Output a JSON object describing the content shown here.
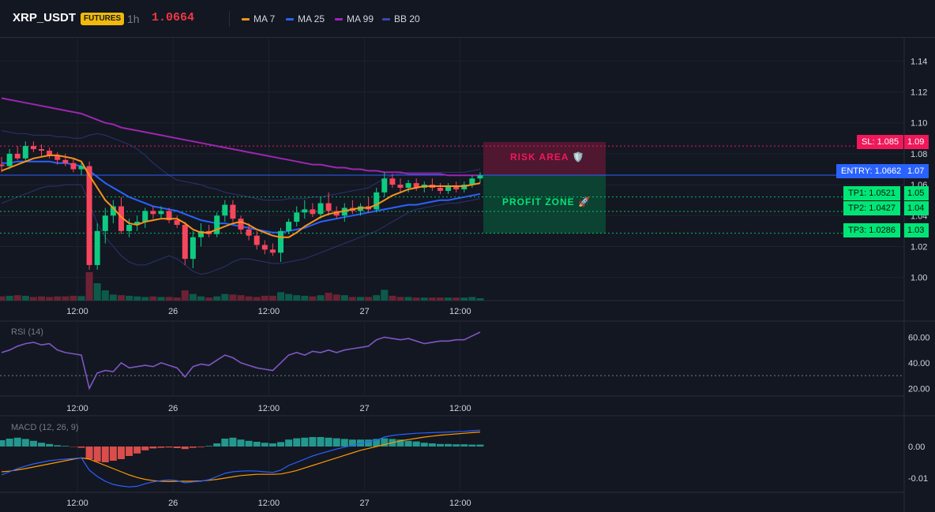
{
  "header": {
    "symbol": "XRP_USDT",
    "badge": "FUTURES",
    "timeframe": "1h",
    "price": "1.0664",
    "price_color": "#f23645"
  },
  "indicators": [
    {
      "name": "MA 7",
      "color": "#f7931a",
      "icon": "line-swatch"
    },
    {
      "name": "MA 25",
      "color": "#2962ff",
      "icon": "line-swatch"
    },
    {
      "name": "MA 99",
      "color": "#9c27b0",
      "icon": "line-swatch"
    },
    {
      "name": "BB 20",
      "color": "#3949ab",
      "icon": "line-swatch"
    }
  ],
  "annotations": {
    "risk_area": "RISK AREA 🛡️",
    "profit_zone": "PROFIT ZONE 🚀",
    "sl": "SL: 1.085",
    "entry": "ENTRY: 1.0662",
    "tp1": "TP1: 1.0521",
    "tp2": "TP2: 1.0427",
    "tp3": "TP3: 1.0286",
    "sl_axis": "1.09",
    "entry_axis": "1.07",
    "tp1_axis": "1.05",
    "tp2_axis": "1.04",
    "tp3_axis": "1.03"
  },
  "colors": {
    "background": "#131722",
    "up": "#0ecb81",
    "down": "#f6465d",
    "sl": "#f0185a",
    "entry": "#2962ff",
    "tp": "#00e676"
  },
  "rsi_pane": {
    "label": "RSI (14)"
  },
  "macd_pane": {
    "label": "MACD (12, 26, 9)"
  },
  "x_ticks": [
    "12:00",
    "26",
    "12:00",
    "27",
    "12:00"
  ],
  "chart_data": [
    {
      "type": "candlestick",
      "title": "XRP_USDT",
      "y_ticks": [
        "1.14",
        "1.12",
        "1.10",
        "1.08",
        "1.06",
        "1.04",
        "1.02",
        "1.00"
      ],
      "ylim": [
        0.985,
        1.155
      ],
      "candles": [
        {
          "o": 1.073,
          "h": 1.078,
          "l": 1.068,
          "c": 1.072
        },
        {
          "o": 1.072,
          "h": 1.083,
          "l": 1.07,
          "c": 1.08
        },
        {
          "o": 1.08,
          "h": 1.085,
          "l": 1.076,
          "c": 1.077
        },
        {
          "o": 1.077,
          "h": 1.088,
          "l": 1.075,
          "c": 1.085
        },
        {
          "o": 1.085,
          "h": 1.088,
          "l": 1.081,
          "c": 1.083
        },
        {
          "o": 1.083,
          "h": 1.086,
          "l": 1.078,
          "c": 1.082
        },
        {
          "o": 1.082,
          "h": 1.084,
          "l": 1.077,
          "c": 1.079
        },
        {
          "o": 1.079,
          "h": 1.081,
          "l": 1.073,
          "c": 1.076
        },
        {
          "o": 1.076,
          "h": 1.08,
          "l": 1.072,
          "c": 1.074
        },
        {
          "o": 1.074,
          "h": 1.077,
          "l": 1.068,
          "c": 1.07
        },
        {
          "o": 1.07,
          "h": 1.074,
          "l": 1.066,
          "c": 1.072
        },
        {
          "o": 1.072,
          "h": 1.075,
          "l": 1.005,
          "c": 1.008
        },
        {
          "o": 1.008,
          "h": 1.035,
          "l": 1.005,
          "c": 1.03
        },
        {
          "o": 1.03,
          "h": 1.045,
          "l": 1.022,
          "c": 1.04
        },
        {
          "o": 1.04,
          "h": 1.05,
          "l": 1.035,
          "c": 1.046
        },
        {
          "o": 1.046,
          "h": 1.052,
          "l": 1.028,
          "c": 1.03
        },
        {
          "o": 1.03,
          "h": 1.038,
          "l": 1.026,
          "c": 1.034
        },
        {
          "o": 1.034,
          "h": 1.04,
          "l": 1.03,
          "c": 1.036
        },
        {
          "o": 1.036,
          "h": 1.045,
          "l": 1.032,
          "c": 1.043
        },
        {
          "o": 1.043,
          "h": 1.046,
          "l": 1.038,
          "c": 1.041
        },
        {
          "o": 1.041,
          "h": 1.046,
          "l": 1.038,
          "c": 1.043
        },
        {
          "o": 1.043,
          "h": 1.045,
          "l": 1.035,
          "c": 1.037
        },
        {
          "o": 1.037,
          "h": 1.04,
          "l": 1.032,
          "c": 1.034
        },
        {
          "o": 1.034,
          "h": 1.036,
          "l": 1.008,
          "c": 1.012
        },
        {
          "o": 1.012,
          "h": 1.03,
          "l": 1.006,
          "c": 1.026
        },
        {
          "o": 1.026,
          "h": 1.035,
          "l": 1.02,
          "c": 1.03
        },
        {
          "o": 1.03,
          "h": 1.034,
          "l": 1.026,
          "c": 1.028
        },
        {
          "o": 1.028,
          "h": 1.042,
          "l": 1.026,
          "c": 1.04
        },
        {
          "o": 1.04,
          "h": 1.05,
          "l": 1.036,
          "c": 1.047
        },
        {
          "o": 1.047,
          "h": 1.05,
          "l": 1.036,
          "c": 1.038
        },
        {
          "o": 1.038,
          "h": 1.04,
          "l": 1.028,
          "c": 1.031
        },
        {
          "o": 1.031,
          "h": 1.035,
          "l": 1.024,
          "c": 1.027
        },
        {
          "o": 1.027,
          "h": 1.03,
          "l": 1.018,
          "c": 1.021
        },
        {
          "o": 1.021,
          "h": 1.024,
          "l": 1.015,
          "c": 1.018
        },
        {
          "o": 1.018,
          "h": 1.022,
          "l": 1.014,
          "c": 1.016
        },
        {
          "o": 1.016,
          "h": 1.032,
          "l": 1.01,
          "c": 1.03
        },
        {
          "o": 1.03,
          "h": 1.038,
          "l": 1.028,
          "c": 1.036
        },
        {
          "o": 1.036,
          "h": 1.046,
          "l": 1.033,
          "c": 1.042
        },
        {
          "o": 1.042,
          "h": 1.05,
          "l": 1.038,
          "c": 1.044
        },
        {
          "o": 1.044,
          "h": 1.048,
          "l": 1.039,
          "c": 1.041
        },
        {
          "o": 1.041,
          "h": 1.052,
          "l": 1.038,
          "c": 1.048
        },
        {
          "o": 1.048,
          "h": 1.055,
          "l": 1.04,
          "c": 1.043
        },
        {
          "o": 1.043,
          "h": 1.046,
          "l": 1.038,
          "c": 1.04
        },
        {
          "o": 1.04,
          "h": 1.048,
          "l": 1.036,
          "c": 1.045
        },
        {
          "o": 1.045,
          "h": 1.05,
          "l": 1.041,
          "c": 1.043
        },
        {
          "o": 1.043,
          "h": 1.048,
          "l": 1.04,
          "c": 1.046
        },
        {
          "o": 1.046,
          "h": 1.052,
          "l": 1.042,
          "c": 1.044
        },
        {
          "o": 1.044,
          "h": 1.058,
          "l": 1.042,
          "c": 1.055
        },
        {
          "o": 1.055,
          "h": 1.068,
          "l": 1.052,
          "c": 1.064
        },
        {
          "o": 1.064,
          "h": 1.067,
          "l": 1.058,
          "c": 1.06
        },
        {
          "o": 1.06,
          "h": 1.064,
          "l": 1.055,
          "c": 1.058
        },
        {
          "o": 1.058,
          "h": 1.063,
          "l": 1.055,
          "c": 1.061
        },
        {
          "o": 1.061,
          "h": 1.064,
          "l": 1.056,
          "c": 1.058
        },
        {
          "o": 1.058,
          "h": 1.062,
          "l": 1.055,
          "c": 1.06
        },
        {
          "o": 1.06,
          "h": 1.064,
          "l": 1.056,
          "c": 1.058
        },
        {
          "o": 1.058,
          "h": 1.061,
          "l": 1.054,
          "c": 1.056
        },
        {
          "o": 1.056,
          "h": 1.061,
          "l": 1.054,
          "c": 1.059
        },
        {
          "o": 1.059,
          "h": 1.062,
          "l": 1.055,
          "c": 1.057
        },
        {
          "o": 1.057,
          "h": 1.062,
          "l": 1.055,
          "c": 1.06
        },
        {
          "o": 1.06,
          "h": 1.066,
          "l": 1.058,
          "c": 1.064
        },
        {
          "o": 1.064,
          "h": 1.068,
          "l": 1.061,
          "c": 1.066
        }
      ],
      "ma7": [
        1.069,
        1.071,
        1.073,
        1.075,
        1.077,
        1.078,
        1.079,
        1.079,
        1.078,
        1.077,
        1.075,
        1.066,
        1.058,
        1.05,
        1.045,
        1.039,
        1.035,
        1.034,
        1.036,
        1.037,
        1.038,
        1.038,
        1.038,
        1.035,
        1.031,
        1.029,
        1.029,
        1.031,
        1.033,
        1.035,
        1.036,
        1.034,
        1.031,
        1.029,
        1.027,
        1.026,
        1.026,
        1.029,
        1.033,
        1.036,
        1.039,
        1.041,
        1.042,
        1.043,
        1.044,
        1.045,
        1.045,
        1.047,
        1.05,
        1.053,
        1.055,
        1.057,
        1.058,
        1.059,
        1.059,
        1.059,
        1.059,
        1.059,
        1.059,
        1.06,
        1.061
      ],
      "ma25": [
        1.074,
        1.074,
        1.075,
        1.075,
        1.075,
        1.075,
        1.075,
        1.074,
        1.074,
        1.073,
        1.072,
        1.069,
        1.065,
        1.061,
        1.058,
        1.055,
        1.052,
        1.05,
        1.048,
        1.046,
        1.045,
        1.044,
        1.043,
        1.041,
        1.039,
        1.037,
        1.036,
        1.035,
        1.035,
        1.034,
        1.033,
        1.032,
        1.031,
        1.03,
        1.029,
        1.029,
        1.03,
        1.031,
        1.032,
        1.034,
        1.036,
        1.037,
        1.038,
        1.039,
        1.04,
        1.041,
        1.042,
        1.043,
        1.044,
        1.045,
        1.046,
        1.047,
        1.047,
        1.048,
        1.049,
        1.05,
        1.05,
        1.051,
        1.052,
        1.053,
        1.054
      ],
      "ma99": [
        1.116,
        1.115,
        1.114,
        1.113,
        1.112,
        1.111,
        1.11,
        1.109,
        1.108,
        1.107,
        1.106,
        1.104,
        1.102,
        1.1,
        1.099,
        1.097,
        1.096,
        1.095,
        1.094,
        1.093,
        1.092,
        1.091,
        1.09,
        1.089,
        1.088,
        1.087,
        1.086,
        1.085,
        1.084,
        1.083,
        1.082,
        1.081,
        1.08,
        1.079,
        1.078,
        1.077,
        1.076,
        1.075,
        1.074,
        1.073,
        1.073,
        1.072,
        1.071,
        1.071,
        1.07,
        1.07,
        1.069,
        1.069,
        1.068,
        1.068,
        1.068,
        1.067,
        1.067,
        1.067,
        1.067,
        1.067,
        1.066,
        1.066,
        1.066,
        1.066,
        1.066
      ],
      "bb_upper": [
        1.095,
        1.094,
        1.093,
        1.093,
        1.092,
        1.092,
        1.092,
        1.091,
        1.091,
        1.09,
        1.09,
        1.092,
        1.093,
        1.092,
        1.09,
        1.088,
        1.086,
        1.083,
        1.079,
        1.074,
        1.07,
        1.066,
        1.063,
        1.062,
        1.061,
        1.06,
        1.058,
        1.057,
        1.055,
        1.054,
        1.053,
        1.052,
        1.051,
        1.05,
        1.05,
        1.05,
        1.051,
        1.051,
        1.051,
        1.052,
        1.052,
        1.053,
        1.054,
        1.055,
        1.056,
        1.057,
        1.058,
        1.061,
        1.064,
        1.066,
        1.067,
        1.068,
        1.068,
        1.068,
        1.068,
        1.068,
        1.068,
        1.068,
        1.068,
        1.069,
        1.07
      ],
      "bb_lower": [
        1.048,
        1.05,
        1.052,
        1.054,
        1.056,
        1.058,
        1.059,
        1.059,
        1.06,
        1.06,
        1.06,
        1.048,
        1.035,
        1.026,
        1.02,
        1.014,
        1.01,
        1.008,
        1.008,
        1.01,
        1.012,
        1.014,
        1.012,
        1.008,
        1.004,
        1.002,
        1.003,
        1.005,
        1.007,
        1.01,
        1.012,
        1.012,
        1.011,
        1.01,
        1.009,
        1.009,
        1.01,
        1.011,
        1.012,
        1.014,
        1.016,
        1.018,
        1.02,
        1.022,
        1.024,
        1.026,
        1.028,
        1.03,
        1.033,
        1.036,
        1.039,
        1.042,
        1.044,
        1.045,
        1.046,
        1.047,
        1.048,
        1.048,
        1.049,
        1.05,
        1.051
      ]
    },
    {
      "type": "line",
      "title": "RSI (14)",
      "y_ticks": [
        "60.00",
        "40.00",
        "20.00"
      ],
      "ylim": [
        14,
        72
      ],
      "level": 30,
      "values": [
        48,
        50,
        53,
        55,
        56,
        54,
        55,
        50,
        48,
        47,
        46,
        20,
        32,
        34,
        33,
        40,
        36,
        37,
        38,
        37,
        40,
        38,
        36,
        29,
        37,
        39,
        38,
        42,
        46,
        44,
        40,
        38,
        36,
        35,
        34,
        40,
        46,
        48,
        46,
        49,
        48,
        50,
        48,
        50,
        51,
        52,
        53,
        58,
        60,
        59,
        58,
        59,
        57,
        55,
        56,
        57,
        57,
        58,
        58,
        61,
        64
      ],
      "color": "#7e57c2"
    },
    {
      "type": "bar",
      "title": "MACD (12, 26, 9)",
      "y_ticks": [
        "0.00",
        "-0.01"
      ],
      "ylim": [
        -0.0145,
        0.0095
      ],
      "histogram": [
        0.002,
        0.0025,
        0.0028,
        0.0024,
        0.0018,
        0.0012,
        0.0008,
        0.0004,
        0.0002,
        -0.0001,
        -0.0004,
        -0.004,
        -0.0048,
        -0.005,
        -0.0045,
        -0.004,
        -0.003,
        -0.0022,
        -0.0012,
        -0.0006,
        -0.0004,
        -0.0003,
        -0.0005,
        -0.0008,
        -0.0004,
        -0.0002,
        0.0002,
        0.001,
        0.0025,
        0.0028,
        0.0022,
        0.0018,
        0.0015,
        0.0012,
        0.001,
        0.0014,
        0.0022,
        0.0026,
        0.0028,
        0.003,
        0.003,
        0.0028,
        0.0026,
        0.0024,
        0.0022,
        0.0022,
        0.0022,
        0.0024,
        0.0026,
        0.0024,
        0.0022,
        0.0018,
        0.0016,
        0.0012,
        0.001,
        0.0008,
        0.0008,
        0.0007,
        0.0007,
        0.0006,
        0.0006
      ],
      "macd": [
        -0.009,
        -0.008,
        -0.007,
        -0.0062,
        -0.0055,
        -0.005,
        -0.0045,
        -0.0042,
        -0.004,
        -0.0038,
        -0.0036,
        -0.0075,
        -0.0095,
        -0.011,
        -0.012,
        -0.0125,
        -0.0128,
        -0.0126,
        -0.0118,
        -0.0112,
        -0.0108,
        -0.0106,
        -0.0108,
        -0.0115,
        -0.0112,
        -0.011,
        -0.0105,
        -0.0095,
        -0.0085,
        -0.008,
        -0.0078,
        -0.0077,
        -0.0078,
        -0.008,
        -0.0082,
        -0.0075,
        -0.006,
        -0.005,
        -0.004,
        -0.003,
        -0.0022,
        -0.0015,
        -0.0008,
        -0.0002,
        0.0004,
        0.001,
        0.0015,
        0.002,
        0.003,
        0.0035,
        0.0038,
        0.004,
        0.0042,
        0.0043,
        0.0044,
        0.0045,
        0.0046,
        0.0047,
        0.0048,
        0.005,
        0.0052
      ],
      "signal": [
        -0.008,
        -0.0078,
        -0.0074,
        -0.007,
        -0.0065,
        -0.006,
        -0.0055,
        -0.005,
        -0.0045,
        -0.004,
        -0.0036,
        -0.004,
        -0.005,
        -0.006,
        -0.007,
        -0.008,
        -0.009,
        -0.0098,
        -0.0104,
        -0.0108,
        -0.011,
        -0.0111,
        -0.011,
        -0.011,
        -0.011,
        -0.0109,
        -0.0107,
        -0.0104,
        -0.01,
        -0.0096,
        -0.0092,
        -0.009,
        -0.0088,
        -0.0088,
        -0.0088,
        -0.0087,
        -0.0082,
        -0.0076,
        -0.0068,
        -0.006,
        -0.0052,
        -0.0044,
        -0.0036,
        -0.0028,
        -0.002,
        -0.0012,
        -0.0006,
        0.0,
        0.0006,
        0.0012,
        0.0018,
        0.0022,
        0.0026,
        0.003,
        0.0033,
        0.0036,
        0.0038,
        0.004,
        0.0042,
        0.0044,
        0.0046
      ],
      "macd_color": "#2962ff",
      "signal_color": "#ff9800"
    }
  ],
  "volume": [
    14,
    16,
    18,
    16,
    12,
    14,
    12,
    14,
    14,
    16,
    15,
    95,
    58,
    34,
    20,
    18,
    16,
    14,
    12,
    14,
    12,
    12,
    10,
    34,
    22,
    14,
    10,
    14,
    22,
    20,
    18,
    14,
    12,
    16,
    16,
    28,
    22,
    18,
    16,
    14,
    18,
    26,
    20,
    18,
    12,
    12,
    12,
    18,
    36,
    16,
    12,
    12,
    10,
    10,
    10,
    10,
    10,
    10,
    10,
    12,
    8
  ]
}
